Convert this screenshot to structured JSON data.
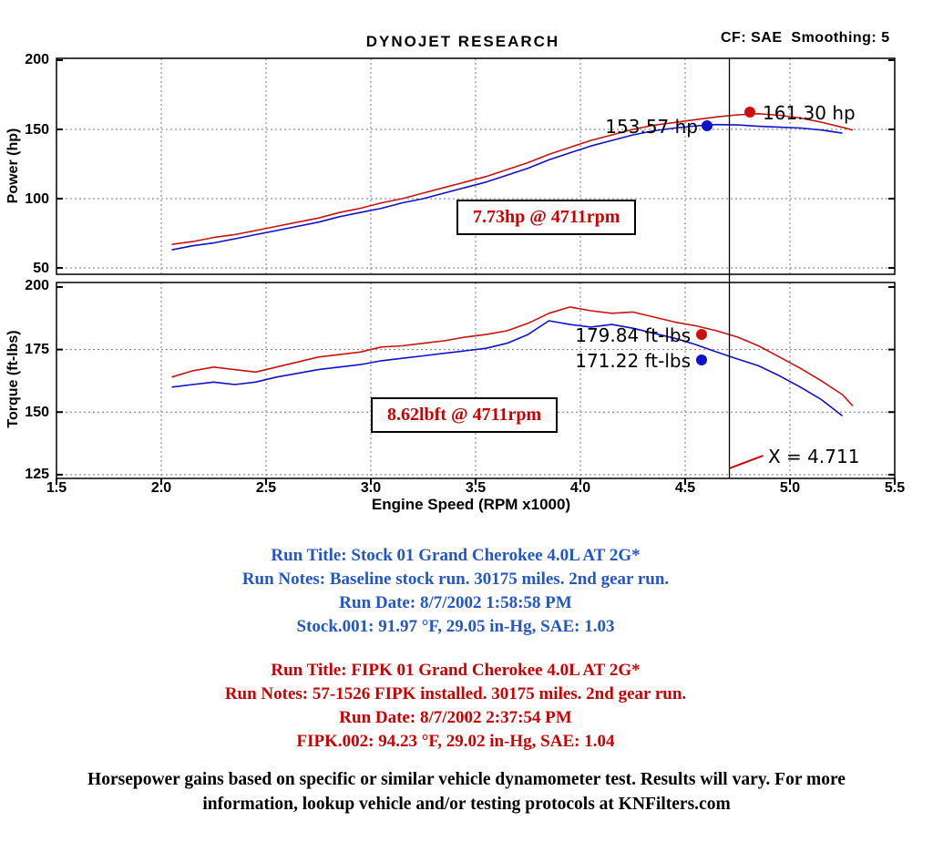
{
  "header": {
    "title": "DYNOJET RESEARCH",
    "cf_smoothing": "CF: SAE  Smoothing: 5"
  },
  "cursor": {
    "x": 4.711,
    "label": "X = 4.711"
  },
  "chart_data": [
    {
      "type": "line",
      "title": "Power vs Engine Speed",
      "ylabel": "Power (hp)",
      "xlabel": "Engine Speed (RPM x1000)",
      "xlim": [
        1.5,
        5.5
      ],
      "ylim": [
        45,
        200
      ],
      "grid": true,
      "yticks": [
        200,
        150,
        100,
        50
      ],
      "yticklabels": [
        "200",
        "150",
        "100",
        "50"
      ],
      "xticks": [
        1.5,
        2.0,
        2.5,
        3.0,
        3.5,
        4.0,
        4.5,
        5.0,
        5.5
      ],
      "series": [
        {
          "name": "FIPK.002",
          "color": "#cc1111",
          "x": [
            2.05,
            2.15,
            2.25,
            2.35,
            2.45,
            2.55,
            2.65,
            2.75,
            2.85,
            2.95,
            3.05,
            3.15,
            3.25,
            3.35,
            3.45,
            3.55,
            3.65,
            3.75,
            3.85,
            3.95,
            4.05,
            4.15,
            4.25,
            4.35,
            4.45,
            4.55,
            4.65,
            4.75,
            4.85,
            4.95,
            5.05,
            5.15,
            5.25,
            5.3
          ],
          "y": [
            67,
            69,
            72,
            74,
            77,
            80,
            83,
            86,
            90,
            93,
            97,
            100,
            104,
            108,
            112,
            116,
            121,
            126,
            132,
            137,
            142,
            146,
            150,
            153,
            155,
            157,
            159,
            160.5,
            161.3,
            160.2,
            158.2,
            155.2,
            151.5,
            149.5
          ]
        },
        {
          "name": "Stock.001",
          "color": "#1111cc",
          "x": [
            2.05,
            2.15,
            2.25,
            2.35,
            2.45,
            2.55,
            2.65,
            2.75,
            2.85,
            2.95,
            3.05,
            3.15,
            3.25,
            3.35,
            3.45,
            3.55,
            3.65,
            3.75,
            3.85,
            3.95,
            4.05,
            4.15,
            4.25,
            4.35,
            4.45,
            4.55,
            4.65,
            4.75,
            4.85,
            4.95,
            5.05,
            5.15,
            5.25
          ],
          "y": [
            63,
            66,
            68,
            71,
            74,
            77,
            80,
            83,
            87,
            90,
            93,
            97,
            100,
            104,
            108,
            112,
            117,
            122,
            128,
            133,
            138,
            142,
            146,
            149,
            151,
            152.5,
            153.5,
            153.2,
            152.2,
            151.6,
            151,
            149.5,
            147.3
          ]
        }
      ],
      "cursor_values": [
        {
          "series": "Stock.001",
          "label": "153.57 hp",
          "value": 153.57
        },
        {
          "series": "FIPK.002",
          "label": "161.30 hp",
          "value": 161.3
        }
      ],
      "gain_label": "7.73hp @ 4711rpm"
    },
    {
      "type": "line",
      "title": "Torque vs Engine Speed",
      "ylabel": "Torque (ft-lbs)",
      "xlabel": "Engine Speed (RPM x1000)",
      "xlim": [
        1.5,
        5.5
      ],
      "ylim": [
        123,
        200
      ],
      "grid": true,
      "yticks": [
        200,
        175,
        150,
        125
      ],
      "yticklabels": [
        "200",
        "175",
        "150",
        "125"
      ],
      "xticks": [
        1.5,
        2.0,
        2.5,
        3.0,
        3.5,
        4.0,
        4.5,
        5.0,
        5.5
      ],
      "xticklabels": [
        "1.5",
        "2.0",
        "2.5",
        "3.0",
        "3.5",
        "4.0",
        "4.5",
        "5.0",
        "5.5"
      ],
      "series": [
        {
          "name": "FIPK.002",
          "color": "#cc1111",
          "x": [
            2.05,
            2.15,
            2.25,
            2.35,
            2.45,
            2.55,
            2.65,
            2.75,
            2.85,
            2.95,
            3.05,
            3.15,
            3.25,
            3.35,
            3.45,
            3.55,
            3.65,
            3.75,
            3.85,
            3.95,
            4.05,
            4.15,
            4.25,
            4.35,
            4.45,
            4.55,
            4.65,
            4.75,
            4.85,
            4.95,
            5.05,
            5.15,
            5.25,
            5.3
          ],
          "y": [
            164,
            166.5,
            168,
            167,
            166,
            168,
            170,
            172,
            173,
            174,
            176,
            176.5,
            177.5,
            178.5,
            180,
            181,
            182.5,
            185.5,
            189.5,
            192,
            190.5,
            189.5,
            190,
            188,
            186,
            184.5,
            182.5,
            180,
            176.5,
            172,
            167.5,
            162.5,
            157,
            152.5
          ]
        },
        {
          "name": "Stock.001",
          "color": "#1111cc",
          "x": [
            2.05,
            2.15,
            2.25,
            2.35,
            2.45,
            2.55,
            2.65,
            2.75,
            2.85,
            2.95,
            3.05,
            3.15,
            3.25,
            3.35,
            3.45,
            3.55,
            3.65,
            3.75,
            3.85,
            3.95,
            4.05,
            4.15,
            4.25,
            4.35,
            4.45,
            4.55,
            4.65,
            4.75,
            4.85,
            4.95,
            5.05,
            5.15,
            5.25
          ],
          "y": [
            160,
            161,
            162,
            161,
            162,
            164,
            165.5,
            167,
            168,
            169,
            170.5,
            171.5,
            172.5,
            173.5,
            174.5,
            175.5,
            177.5,
            181,
            186.5,
            185,
            184,
            185,
            183.5,
            181.5,
            179.5,
            177,
            174,
            171.2,
            168.5,
            164.5,
            160,
            155,
            148.5
          ]
        }
      ],
      "cursor_values": [
        {
          "series": "FIPK.002",
          "label": "179.84 ft-lbs",
          "value": 179.84
        },
        {
          "series": "Stock.001",
          "label": "171.22 ft-lbs",
          "value": 171.22
        }
      ],
      "gain_label": "8.62lbft @ 4711rpm"
    }
  ],
  "runs": [
    {
      "name": "Stock.001",
      "color": "#2456c8",
      "lines": [
        "Run Title: Stock 01 Grand Cherokee 4.0L AT 2G*",
        "Run Notes: Baseline stock run. 30175 miles. 2nd gear run.",
        "Run Date: 8/7/2002 1:58:58 PM",
        "Stock.001: 91.97 °F, 29.05 in-Hg, SAE: 1.03"
      ]
    },
    {
      "name": "FIPK.002",
      "color": "#cc0000",
      "lines": [
        "Run Title: FIPK 01 Grand Cherokee 4.0L AT 2G*",
        "Run Notes: 57-1526 FIPK installed. 30175 miles. 2nd gear run.",
        "Run Date: 8/7/2002 2:37:54 PM",
        "FIPK.002: 94.23 °F, 29.02 in-Hg, SAE: 1.04"
      ]
    }
  ],
  "footer": {
    "line1": "Horsepower gains based on specific or similar vehicle dynamometer test. Results will vary. For more",
    "line2": "information, lookup vehicle and/or testing protocols at KNFilters.com"
  }
}
